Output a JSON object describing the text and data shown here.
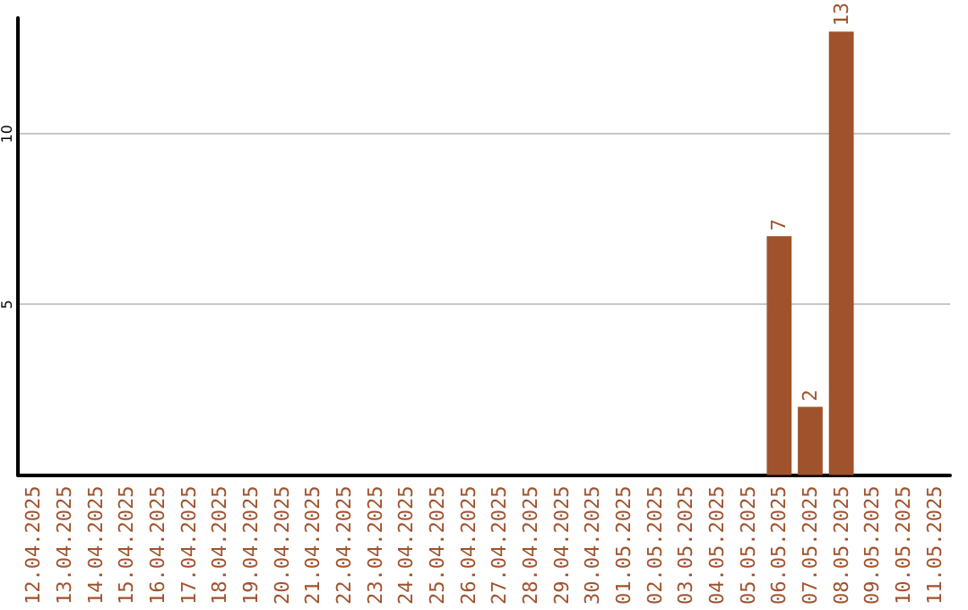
{
  "chart_data": {
    "type": "bar",
    "categories": [
      "12.04.2025",
      "13.04.2025",
      "14.04.2025",
      "15.04.2025",
      "16.04.2025",
      "17.04.2025",
      "18.04.2025",
      "19.04.2025",
      "20.04.2025",
      "21.04.2025",
      "22.04.2025",
      "23.04.2025",
      "24.04.2025",
      "25.04.2025",
      "26.04.2025",
      "27.04.2025",
      "28.04.2025",
      "29.04.2025",
      "30.04.2025",
      "01.05.2025",
      "02.05.2025",
      "03.05.2025",
      "04.05.2025",
      "05.05.2025",
      "06.05.2025",
      "07.05.2025",
      "08.05.2025",
      "09.05.2025",
      "10.05.2025",
      "11.05.2025"
    ],
    "values": [
      null,
      null,
      null,
      null,
      null,
      null,
      null,
      null,
      null,
      null,
      null,
      null,
      null,
      null,
      null,
      null,
      null,
      null,
      null,
      null,
      null,
      null,
      null,
      null,
      7,
      2,
      13,
      null,
      null,
      null
    ],
    "color": "#a0522d",
    "ylim": [
      0,
      13.4
    ],
    "yticks": [
      5,
      10
    ],
    "grid": "y",
    "data_labels": true
  }
}
